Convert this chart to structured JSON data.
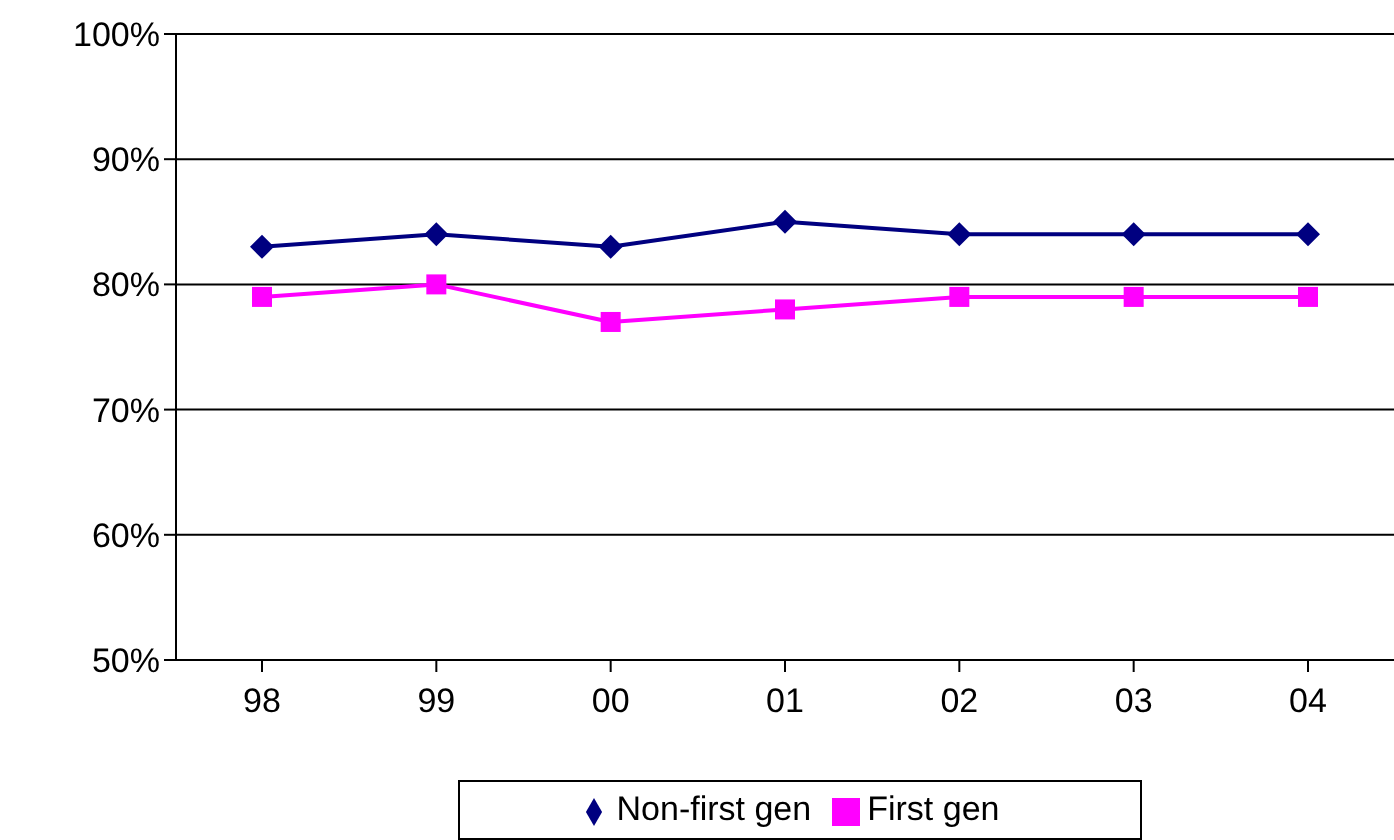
{
  "chart_data": {
    "type": "line",
    "categories": [
      "98",
      "99",
      "00",
      "01",
      "02",
      "03",
      "04"
    ],
    "series": [
      {
        "name": "Non-first gen",
        "color": "#000080",
        "marker": "diamond",
        "values": [
          83,
          84,
          83,
          85,
          84,
          84,
          84
        ]
      },
      {
        "name": "First gen",
        "color": "#ff00ff",
        "marker": "square",
        "values": [
          79,
          80,
          77,
          78,
          79,
          79,
          79
        ]
      }
    ],
    "ylim": [
      50,
      100
    ],
    "yticks": [
      {
        "value": 50,
        "label": "50%"
      },
      {
        "value": 60,
        "label": "60%"
      },
      {
        "value": 70,
        "label": "70%"
      },
      {
        "value": 80,
        "label": "80%"
      },
      {
        "value": 90,
        "label": "90%"
      },
      {
        "value": 100,
        "label": "100%"
      }
    ],
    "grid": "y",
    "legend": "bottom",
    "line_style": "solid"
  }
}
